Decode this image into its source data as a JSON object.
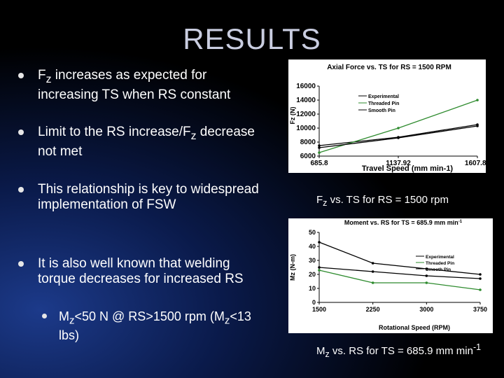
{
  "slide": {
    "title": "RESULTS",
    "bullets": [
      {
        "pre": "F",
        "sub": "z",
        "post": " increases as expected for increasing TS when RS constant"
      },
      {
        "pre": "Limit to the RS increase/F",
        "sub": "z",
        "post": " decrease not met"
      },
      {
        "pre": "This relationship is key to widespread implementation of FSW",
        "sub": "",
        "post": ""
      },
      {
        "pre": "It is also well known that welding torque decreases for increased RS",
        "sub": "",
        "post": ""
      }
    ],
    "subbullet": {
      "a": "M",
      "a_sub": "z",
      "b": "<50 N @ RS>1500 rpm (M",
      "b_sub": "z",
      "c": "<13 lbs)"
    },
    "caption1": {
      "pre": "F",
      "sub": "z",
      "post": " vs. TS for RS = 1500 rpm"
    },
    "caption2": {
      "pre": "M",
      "sub": "z",
      "post": " vs. RS for TS = 685.9 mm min",
      "sup": "-1"
    }
  },
  "chart_data": [
    {
      "type": "line",
      "title": "Axial Force vs. TS for RS = 1500 RPM",
      "xlabel": "Travel Speed (mm min-1)",
      "ylabel": "Fz (N)",
      "x": [
        685.8,
        1137.92,
        1607.82
      ],
      "xticklabels": [
        "685.8",
        "1137.92",
        "1607.82"
      ],
      "ylim": [
        6000,
        16000
      ],
      "yticks": [
        6000,
        8000,
        10000,
        12000,
        14000,
        16000
      ],
      "legend_position": "top-right",
      "series": [
        {
          "name": "Experimental",
          "color": "#000000",
          "values": [
            7500,
            8700,
            10500
          ]
        },
        {
          "name": "Threaded Pin",
          "color": "#2e8b2e",
          "values": [
            6500,
            10000,
            14000
          ]
        },
        {
          "name": "Smooth Pin",
          "color": "#000000",
          "values": [
            7200,
            8600,
            10300
          ]
        }
      ]
    },
    {
      "type": "line",
      "title": "Moment vs. RS for TS = 685.9 mm min",
      "title_sup": "-1",
      "xlabel": "Rotational Speed (RPM)",
      "ylabel": "Mz (N-m)",
      "x": [
        1500,
        2250,
        3000,
        3750
      ],
      "xticklabels": [
        "1500",
        "2250",
        "3000",
        "3750"
      ],
      "ylim": [
        0,
        50
      ],
      "yticks": [
        0,
        10,
        20,
        30,
        40,
        50
      ],
      "legend_position": "right",
      "series": [
        {
          "name": "Experimental",
          "color": "#000000",
          "values": [
            43,
            28,
            24,
            20
          ]
        },
        {
          "name": "Threaded Pin",
          "color": "#2e8b2e",
          "values": [
            23,
            14,
            14,
            9
          ]
        },
        {
          "name": "Smooth Pin",
          "color": "#000000",
          "values": [
            25,
            22,
            19,
            17
          ]
        }
      ]
    }
  ]
}
